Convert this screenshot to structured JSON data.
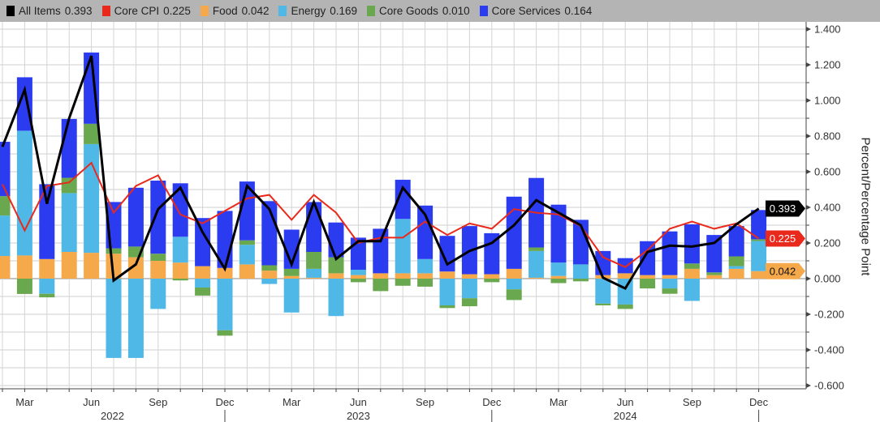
{
  "legend": [
    {
      "key": "all",
      "label": "All Items",
      "value": "0.393",
      "color": "#000000"
    },
    {
      "key": "core",
      "label": "Core CPI",
      "value": "0.225",
      "color": "#e8291c"
    },
    {
      "key": "food",
      "label": "Food",
      "value": "0.042",
      "color": "#f5a94a"
    },
    {
      "key": "energy",
      "label": "Energy",
      "value": "0.169",
      "color": "#4fb8e6"
    },
    {
      "key": "goods",
      "label": "Core Goods",
      "value": "0.010",
      "color": "#6aa84f"
    },
    {
      "key": "services",
      "label": "Core Services",
      "value": "0.164",
      "color": "#2b3cf0"
    }
  ],
  "chart_data": {
    "type": "bar",
    "stacked": true,
    "ylabel": "Percent/Percentage Point",
    "ylim": [
      -0.6,
      1.4
    ],
    "y_axis_side": "right",
    "grid": true,
    "legend_placement": "top",
    "y_ticks": [
      "1.400",
      "1.200",
      "1.000",
      "0.800",
      "0.600",
      "0.400",
      "0.200",
      "0.000",
      "-0.200",
      "-0.400",
      "-0.600"
    ],
    "x_tick_labels": [
      {
        "label": "Mar",
        "date": "2022-03"
      },
      {
        "label": "Jun",
        "date": "2022-06"
      },
      {
        "label": "Sep",
        "date": "2022-09"
      },
      {
        "label": "Dec",
        "date": "2022-12"
      },
      {
        "label": "Mar",
        "date": "2023-03"
      },
      {
        "label": "Jun",
        "date": "2023-06"
      },
      {
        "label": "Sep",
        "date": "2023-09"
      },
      {
        "label": "Dec",
        "date": "2023-12"
      },
      {
        "label": "Mar",
        "date": "2024-03"
      },
      {
        "label": "Jun",
        "date": "2024-06"
      },
      {
        "label": "Sep",
        "date": "2024-09"
      },
      {
        "label": "Dec",
        "date": "2024-12"
      }
    ],
    "year_labels": [
      "2022",
      "2023",
      "2024"
    ],
    "categories": [
      "2022-02",
      "2022-03",
      "2022-04",
      "2022-05",
      "2022-06",
      "2022-07",
      "2022-08",
      "2022-09",
      "2022-10",
      "2022-11",
      "2022-12",
      "2023-01",
      "2023-02",
      "2023-03",
      "2023-04",
      "2023-05",
      "2023-06",
      "2023-07",
      "2023-08",
      "2023-09",
      "2023-10",
      "2023-11",
      "2023-12",
      "2024-01",
      "2024-02",
      "2024-03",
      "2024-04",
      "2024-05",
      "2024-06",
      "2024-07",
      "2024-08",
      "2024-09",
      "2024-10",
      "2024-11",
      "2024-12"
    ],
    "bar_series": [
      {
        "key": "food",
        "name": "Food",
        "color": "#f5a94a",
        "values": [
          0.127,
          0.13,
          0.11,
          0.15,
          0.145,
          0.14,
          0.12,
          0.1,
          0.09,
          0.07,
          0.06,
          0.08,
          0.045,
          0.015,
          0.005,
          0.03,
          0.02,
          0.03,
          0.03,
          0.03,
          0.04,
          0.025,
          0.025,
          0.055,
          0.005,
          0.015,
          0.0,
          0.02,
          0.03,
          0.02,
          0.02,
          0.055,
          0.02,
          0.055,
          0.042
        ]
      },
      {
        "key": "energy",
        "name": "Energy",
        "color": "#4fb8e6",
        "values": [
          0.227,
          0.7,
          -0.085,
          0.33,
          0.61,
          -0.445,
          -0.445,
          -0.17,
          0.145,
          -0.05,
          -0.29,
          0.11,
          -0.03,
          -0.19,
          0.05,
          -0.21,
          0.03,
          0.0,
          0.305,
          0.08,
          -0.15,
          -0.11,
          0.0,
          -0.06,
          0.15,
          0.075,
          0.08,
          -0.14,
          -0.145,
          0.0,
          -0.055,
          -0.125,
          0.0,
          0.015,
          0.169
        ]
      },
      {
        "key": "goods",
        "name": "Core Goods",
        "color": "#6aa84f",
        "values": [
          0.109,
          -0.086,
          -0.02,
          0.086,
          0.114,
          0.03,
          0.06,
          0.04,
          -0.01,
          -0.045,
          -0.03,
          0.025,
          0.03,
          0.04,
          0.095,
          0.09,
          -0.02,
          -0.07,
          -0.04,
          -0.045,
          -0.015,
          -0.045,
          -0.02,
          -0.06,
          0.02,
          -0.025,
          -0.015,
          -0.01,
          -0.025,
          -0.055,
          -0.03,
          0.03,
          0.015,
          0.055,
          0.01
        ]
      },
      {
        "key": "services",
        "name": "Core Services",
        "color": "#2b3cf0",
        "values": [
          0.305,
          0.3,
          0.42,
          0.33,
          0.4,
          0.26,
          0.33,
          0.41,
          0.3,
          0.27,
          0.32,
          0.33,
          0.36,
          0.22,
          0.28,
          0.195,
          0.18,
          0.25,
          0.22,
          0.3,
          0.2,
          0.27,
          0.23,
          0.405,
          0.39,
          0.325,
          0.25,
          0.135,
          0.085,
          0.19,
          0.245,
          0.22,
          0.21,
          0.17,
          0.164
        ]
      }
    ],
    "line_series": [
      {
        "key": "core",
        "name": "Core CPI",
        "color": "#e8291c",
        "values": [
          0.53,
          0.27,
          0.52,
          0.54,
          0.65,
          0.37,
          0.52,
          0.58,
          0.36,
          0.31,
          0.38,
          0.45,
          0.47,
          0.33,
          0.47,
          0.37,
          0.2,
          0.23,
          0.23,
          0.32,
          0.245,
          0.31,
          0.28,
          0.39,
          0.37,
          0.36,
          0.295,
          0.12,
          0.065,
          0.16,
          0.28,
          0.32,
          0.28,
          0.31,
          0.225
        ]
      },
      {
        "key": "all",
        "name": "All Items",
        "color": "#000000",
        "values": [
          0.74,
          1.06,
          0.42,
          0.9,
          1.25,
          -0.01,
          0.08,
          0.39,
          0.51,
          0.26,
          0.055,
          0.52,
          0.39,
          0.08,
          0.43,
          0.11,
          0.21,
          0.21,
          0.51,
          0.36,
          0.08,
          0.155,
          0.2,
          0.3,
          0.44,
          0.37,
          0.3,
          0.005,
          -0.055,
          0.15,
          0.185,
          0.18,
          0.2,
          0.305,
          0.393
        ]
      }
    ],
    "last_value_badges": [
      {
        "label": "0.393",
        "value": 0.393,
        "color": "#000000",
        "text_color": "#ffffff"
      },
      {
        "label": "0.225",
        "value": 0.225,
        "color": "#e8291c",
        "text_color": "#ffffff"
      },
      {
        "label": "0.042",
        "value": 0.042,
        "color": "#f5a94a",
        "text_color": "#111111"
      }
    ]
  }
}
